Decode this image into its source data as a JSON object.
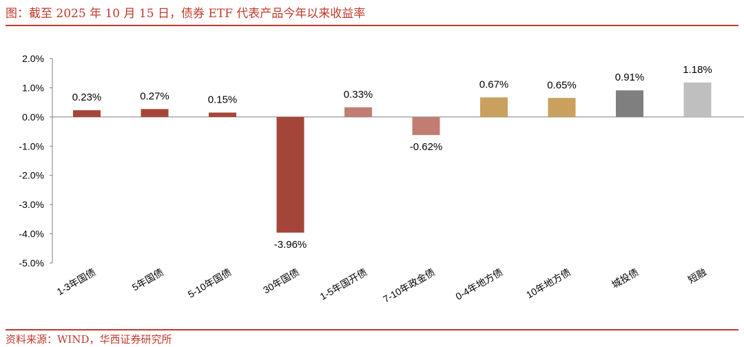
{
  "header": {
    "title": "图：截至 2025 年 10 月 15 日，债券 ETF 代表产品今年以来收益率"
  },
  "footer": {
    "source": "资料来源：WIND，华西证券研究所"
  },
  "chart_data": {
    "type": "bar",
    "categories": [
      "1-3年国债",
      "5年国债",
      "5-10年国债",
      "30年国债",
      "1-5年国开债",
      "7-10年政金债",
      "0-4年地方债",
      "10年地方债",
      "城投债",
      "短融"
    ],
    "values": [
      0.23,
      0.27,
      0.15,
      -3.96,
      0.33,
      -0.62,
      0.67,
      0.65,
      0.91,
      1.18
    ],
    "labels": [
      "0.23%",
      "0.27%",
      "0.15%",
      "-3.96%",
      "0.33%",
      "-0.62%",
      "0.67%",
      "0.65%",
      "0.91%",
      "1.18%"
    ],
    "colors": [
      "#A5453A",
      "#A5453A",
      "#A5453A",
      "#A5453A",
      "#C27D73",
      "#C27D73",
      "#C9A05E",
      "#C9A05E",
      "#7F7F7F",
      "#BFBFBF"
    ],
    "ylim": [
      -5,
      2
    ],
    "yticks": [
      2,
      1,
      0,
      -1,
      -2,
      -3,
      -4,
      -5
    ],
    "ytick_labels": [
      "2.0%",
      "1.0%",
      "0.0%",
      "-1.0%",
      "-2.0%",
      "-3.0%",
      "-4.0%",
      "-5.0%"
    ],
    "grid": false,
    "legend": "none"
  }
}
